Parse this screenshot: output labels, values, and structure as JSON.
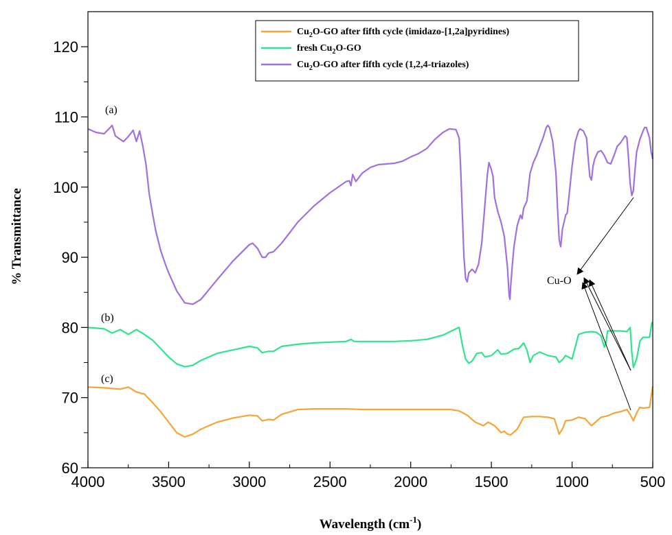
{
  "chart_data": {
    "type": "line",
    "xlabel": "Wavelength (cm",
    "xlabel_sup": "-1",
    "xlabel_close": ")",
    "ylabel": "% Transmittance",
    "xlim": [
      4000,
      500
    ],
    "ylim": [
      60,
      125
    ],
    "x_ticks": [
      "4000",
      "3500",
      "3000",
      "2500",
      "2000",
      "1500",
      "1000",
      "500"
    ],
    "y_ticks": [
      "60",
      "70",
      "80",
      "90",
      "100",
      "110",
      "120"
    ],
    "annotations": {
      "a": "(a)",
      "b": "(b)",
      "c": "(c)",
      "cuo": "Cu-O"
    },
    "legend": {
      "placement": "top-right",
      "items": [
        {
          "parts": [
            "Cu",
            "2",
            "O-GO after fifth cycle (imidazo-[1,2a]pyridines)"
          ],
          "color": "#f5a535"
        },
        {
          "parts": [
            "fresh Cu",
            "2",
            "O-GO"
          ],
          "color": "#2ee68a"
        },
        {
          "parts": [
            "Cu",
            "2",
            "O-GO after fifth cycle (1,2,4-triazoles)"
          ],
          "color": "#a070e0"
        }
      ]
    },
    "series": [
      {
        "key": "c",
        "color": "#f5a535",
        "points": [
          [
            4000,
            71.5
          ],
          [
            3900,
            71.4
          ],
          [
            3800,
            71.2
          ],
          [
            3750,
            71.5
          ],
          [
            3700,
            70.8
          ],
          [
            3650,
            70.5
          ],
          [
            3600,
            69.3
          ],
          [
            3550,
            68.0
          ],
          [
            3500,
            66.5
          ],
          [
            3450,
            65.0
          ],
          [
            3400,
            64.4
          ],
          [
            3350,
            64.8
          ],
          [
            3300,
            65.5
          ],
          [
            3200,
            66.5
          ],
          [
            3100,
            67.1
          ],
          [
            3000,
            67.5
          ],
          [
            2950,
            67.4
          ],
          [
            2920,
            66.7
          ],
          [
            2880,
            66.9
          ],
          [
            2850,
            66.8
          ],
          [
            2800,
            67.6
          ],
          [
            2700,
            68.3
          ],
          [
            2600,
            68.4
          ],
          [
            2500,
            68.4
          ],
          [
            2400,
            68.4
          ],
          [
            2300,
            68.3
          ],
          [
            2200,
            68.3
          ],
          [
            2100,
            68.3
          ],
          [
            2000,
            68.3
          ],
          [
            1900,
            68.3
          ],
          [
            1800,
            68.3
          ],
          [
            1750,
            68.3
          ],
          [
            1700,
            68.1
          ],
          [
            1650,
            67.5
          ],
          [
            1600,
            66.5
          ],
          [
            1550,
            66.0
          ],
          [
            1520,
            66.5
          ],
          [
            1480,
            66.0
          ],
          [
            1440,
            65.0
          ],
          [
            1420,
            65.2
          ],
          [
            1400,
            64.8
          ],
          [
            1380,
            64.7
          ],
          [
            1340,
            65.5
          ],
          [
            1300,
            67.2
          ],
          [
            1250,
            67.3
          ],
          [
            1200,
            67.3
          ],
          [
            1150,
            67.2
          ],
          [
            1110,
            67.0
          ],
          [
            1080,
            64.8
          ],
          [
            1060,
            65.5
          ],
          [
            1040,
            66.7
          ],
          [
            1000,
            66.8
          ],
          [
            960,
            67.2
          ],
          [
            920,
            67.0
          ],
          [
            880,
            66.0
          ],
          [
            860,
            66.4
          ],
          [
            820,
            67.2
          ],
          [
            780,
            67.4
          ],
          [
            740,
            67.8
          ],
          [
            700,
            68.0
          ],
          [
            660,
            68.3
          ],
          [
            640,
            67.6
          ],
          [
            620,
            66.7
          ],
          [
            600,
            67.8
          ],
          [
            580,
            68.6
          ],
          [
            560,
            68.5
          ],
          [
            520,
            68.6
          ],
          [
            500,
            71.6
          ]
        ]
      },
      {
        "key": "b",
        "color": "#2ee68a",
        "points": [
          [
            4000,
            80.0
          ],
          [
            3900,
            79.8
          ],
          [
            3850,
            79.2
          ],
          [
            3800,
            79.7
          ],
          [
            3750,
            79.0
          ],
          [
            3700,
            79.7
          ],
          [
            3650,
            79.0
          ],
          [
            3600,
            78.2
          ],
          [
            3550,
            77.0
          ],
          [
            3500,
            75.8
          ],
          [
            3450,
            74.8
          ],
          [
            3400,
            74.4
          ],
          [
            3350,
            74.6
          ],
          [
            3300,
            75.3
          ],
          [
            3200,
            76.3
          ],
          [
            3100,
            76.8
          ],
          [
            3000,
            77.3
          ],
          [
            2950,
            77.1
          ],
          [
            2920,
            76.4
          ],
          [
            2880,
            76.6
          ],
          [
            2850,
            76.6
          ],
          [
            2800,
            77.3
          ],
          [
            2700,
            77.6
          ],
          [
            2600,
            77.8
          ],
          [
            2500,
            77.9
          ],
          [
            2400,
            78.0
          ],
          [
            2370,
            78.3
          ],
          [
            2350,
            78.0
          ],
          [
            2300,
            78.0
          ],
          [
            2200,
            78.0
          ],
          [
            2100,
            78.0
          ],
          [
            2000,
            78.1
          ],
          [
            1900,
            78.3
          ],
          [
            1800,
            78.9
          ],
          [
            1720,
            79.8
          ],
          [
            1700,
            80.0
          ],
          [
            1680,
            77.5
          ],
          [
            1660,
            75.5
          ],
          [
            1640,
            74.9
          ],
          [
            1620,
            75.2
          ],
          [
            1590,
            76.3
          ],
          [
            1560,
            76.4
          ],
          [
            1540,
            75.8
          ],
          [
            1500,
            76.0
          ],
          [
            1460,
            76.8
          ],
          [
            1440,
            76.2
          ],
          [
            1400,
            76.3
          ],
          [
            1360,
            76.9
          ],
          [
            1330,
            77.0
          ],
          [
            1300,
            77.8
          ],
          [
            1280,
            76.8
          ],
          [
            1260,
            75.0
          ],
          [
            1240,
            76.0
          ],
          [
            1200,
            76.5
          ],
          [
            1150,
            76.0
          ],
          [
            1100,
            75.8
          ],
          [
            1080,
            75.0
          ],
          [
            1060,
            75.4
          ],
          [
            1040,
            76.0
          ],
          [
            1000,
            75.5
          ],
          [
            960,
            79.0
          ],
          [
            920,
            79.3
          ],
          [
            880,
            79.4
          ],
          [
            850,
            79.3
          ],
          [
            820,
            78.8
          ],
          [
            800,
            77.2
          ],
          [
            790,
            77.8
          ],
          [
            780,
            79.5
          ],
          [
            750,
            79.5
          ],
          [
            700,
            79.5
          ],
          [
            660,
            79.4
          ],
          [
            640,
            80.0
          ],
          [
            630,
            76.5
          ],
          [
            620,
            74.3
          ],
          [
            600,
            75.5
          ],
          [
            580,
            78.0
          ],
          [
            560,
            78.6
          ],
          [
            520,
            78.6
          ],
          [
            505,
            80.7
          ],
          [
            500,
            80.7
          ]
        ]
      },
      {
        "key": "a",
        "color": "#a070e0",
        "points": [
          [
            4000,
            108.3
          ],
          [
            3950,
            107.8
          ],
          [
            3900,
            107.6
          ],
          [
            3870,
            108.3
          ],
          [
            3850,
            108.8
          ],
          [
            3830,
            107.3
          ],
          [
            3800,
            106.8
          ],
          [
            3780,
            106.5
          ],
          [
            3750,
            107.2
          ],
          [
            3720,
            108.1
          ],
          [
            3700,
            106.5
          ],
          [
            3680,
            108.0
          ],
          [
            3660,
            105.8
          ],
          [
            3640,
            103.2
          ],
          [
            3620,
            99.0
          ],
          [
            3600,
            96.3
          ],
          [
            3580,
            93.8
          ],
          [
            3550,
            91.0
          ],
          [
            3520,
            89.0
          ],
          [
            3500,
            87.8
          ],
          [
            3450,
            85.2
          ],
          [
            3400,
            83.5
          ],
          [
            3350,
            83.3
          ],
          [
            3300,
            84.0
          ],
          [
            3200,
            86.8
          ],
          [
            3100,
            89.5
          ],
          [
            3000,
            91.8
          ],
          [
            2980,
            92.0
          ],
          [
            2950,
            91.3
          ],
          [
            2920,
            90.0
          ],
          [
            2900,
            90.0
          ],
          [
            2880,
            90.6
          ],
          [
            2850,
            90.8
          ],
          [
            2800,
            92.0
          ],
          [
            2750,
            93.5
          ],
          [
            2700,
            95.0
          ],
          [
            2600,
            97.3
          ],
          [
            2500,
            99.2
          ],
          [
            2400,
            100.8
          ],
          [
            2380,
            100.9
          ],
          [
            2370,
            100.2
          ],
          [
            2360,
            101.8
          ],
          [
            2340,
            100.8
          ],
          [
            2300,
            102.0
          ],
          [
            2250,
            102.8
          ],
          [
            2200,
            103.2
          ],
          [
            2150,
            103.3
          ],
          [
            2100,
            103.4
          ],
          [
            2050,
            103.7
          ],
          [
            2000,
            104.3
          ],
          [
            1950,
            104.8
          ],
          [
            1900,
            105.5
          ],
          [
            1850,
            106.8
          ],
          [
            1800,
            107.8
          ],
          [
            1760,
            108.3
          ],
          [
            1720,
            108.2
          ],
          [
            1700,
            107.0
          ],
          [
            1690,
            102.5
          ],
          [
            1680,
            96.0
          ],
          [
            1670,
            90.0
          ],
          [
            1660,
            87.0
          ],
          [
            1650,
            86.5
          ],
          [
            1640,
            87.8
          ],
          [
            1620,
            88.3
          ],
          [
            1600,
            87.8
          ],
          [
            1580,
            89.0
          ],
          [
            1560,
            92.0
          ],
          [
            1540,
            97.5
          ],
          [
            1525,
            101.8
          ],
          [
            1515,
            103.5
          ],
          [
            1500,
            102.5
          ],
          [
            1490,
            101.5
          ],
          [
            1480,
            98.5
          ],
          [
            1460,
            96.5
          ],
          [
            1440,
            95.0
          ],
          [
            1420,
            93.0
          ],
          [
            1400,
            88.5
          ],
          [
            1390,
            84.5
          ],
          [
            1385,
            84.0
          ],
          [
            1380,
            86.0
          ],
          [
            1370,
            89.0
          ],
          [
            1360,
            91.5
          ],
          [
            1340,
            94.5
          ],
          [
            1320,
            96.0
          ],
          [
            1310,
            95.5
          ],
          [
            1300,
            97.0
          ],
          [
            1280,
            98.0
          ],
          [
            1260,
            102.0
          ],
          [
            1240,
            103.5
          ],
          [
            1220,
            104.5
          ],
          [
            1200,
            105.8
          ],
          [
            1180,
            107.0
          ],
          [
            1160,
            108.5
          ],
          [
            1150,
            108.8
          ],
          [
            1140,
            108.5
          ],
          [
            1120,
            106.5
          ],
          [
            1100,
            102.0
          ],
          [
            1090,
            97.0
          ],
          [
            1080,
            92.5
          ],
          [
            1070,
            91.5
          ],
          [
            1060,
            94.0
          ],
          [
            1040,
            96.0
          ],
          [
            1030,
            96.3
          ],
          [
            1020,
            98.5
          ],
          [
            1000,
            103.0
          ],
          [
            980,
            106.5
          ],
          [
            960,
            108.0
          ],
          [
            950,
            108.3
          ],
          [
            930,
            108.0
          ],
          [
            910,
            107.0
          ],
          [
            900,
            104.0
          ],
          [
            890,
            101.5
          ],
          [
            880,
            101.0
          ],
          [
            870,
            103.0
          ],
          [
            860,
            104.0
          ],
          [
            840,
            105.0
          ],
          [
            820,
            105.2
          ],
          [
            800,
            104.5
          ],
          [
            780,
            103.5
          ],
          [
            760,
            103.3
          ],
          [
            740,
            104.5
          ],
          [
            720,
            105.8
          ],
          [
            700,
            106.3
          ],
          [
            680,
            107.0
          ],
          [
            670,
            107.3
          ],
          [
            660,
            107.0
          ],
          [
            650,
            104.0
          ],
          [
            640,
            100.5
          ],
          [
            630,
            98.8
          ],
          [
            620,
            99.5
          ],
          [
            610,
            102.5
          ],
          [
            600,
            105.0
          ],
          [
            580,
            106.8
          ],
          [
            560,
            108.0
          ],
          [
            550,
            108.5
          ],
          [
            540,
            108.5
          ],
          [
            520,
            107.0
          ],
          [
            510,
            105.0
          ],
          [
            500,
            104.0
          ]
        ]
      }
    ]
  }
}
